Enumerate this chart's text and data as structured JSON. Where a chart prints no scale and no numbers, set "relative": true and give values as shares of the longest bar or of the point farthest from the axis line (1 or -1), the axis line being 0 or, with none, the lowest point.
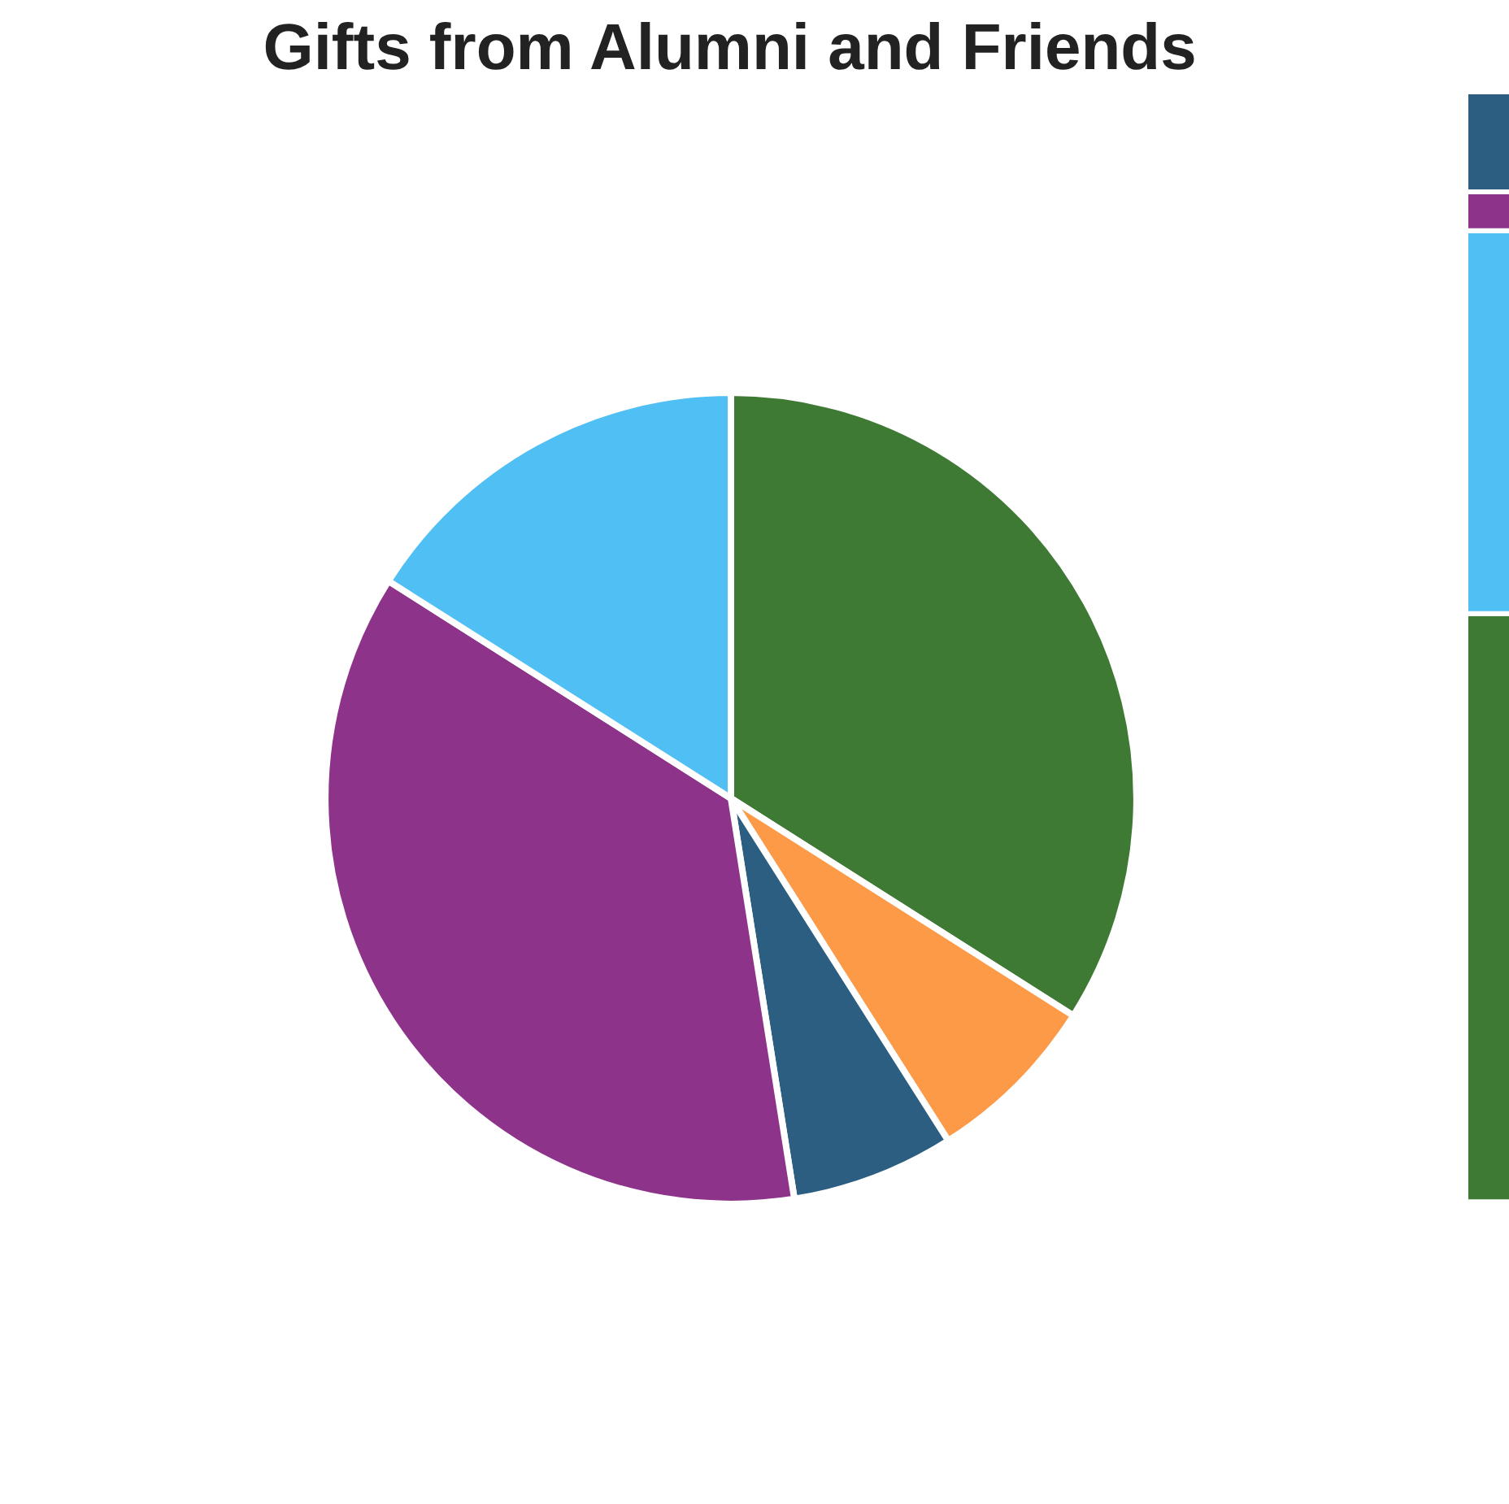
{
  "chart_data": [
    {
      "type": "pie",
      "title": "Gifts from Alumni and Friends",
      "categories": [
        null,
        null,
        null,
        null,
        null
      ],
      "values": [
        34,
        7,
        6.5,
        36.5,
        16
      ],
      "colors": [
        "#3f7a35",
        "#fd9a47",
        "#2b5e80",
        "#8d338a",
        "#4fbff4"
      ]
    },
    {
      "type": "bar",
      "stacked": true,
      "relative": true,
      "categories": [
        null
      ],
      "series": [
        {
          "color": "#3f7a35",
          "values": [
            0.53
          ]
        },
        {
          "color": "#4fbff4",
          "values": [
            0.345
          ]
        },
        {
          "color": "#8d338a",
          "values": [
            0.035
          ]
        },
        {
          "color": "#2b5e80",
          "values": [
            0.09
          ]
        }
      ]
    }
  ]
}
